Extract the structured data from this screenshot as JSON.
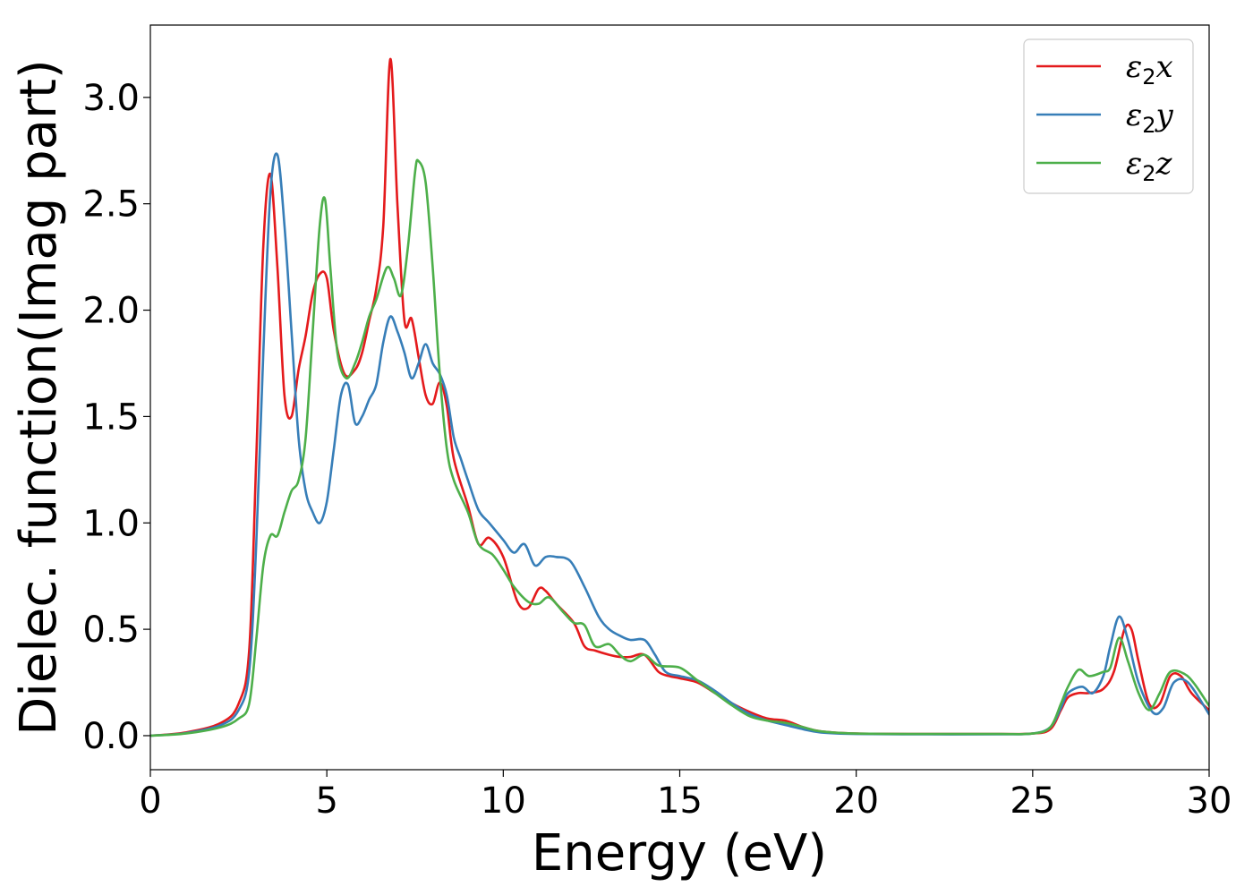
{
  "chart_data": {
    "type": "line",
    "title": "",
    "xlabel": "Energy (eV)",
    "ylabel": "Dielec. function(Imag part)",
    "xlim": [
      0,
      30
    ],
    "ylim": [
      -0.16,
      3.34
    ],
    "xticks": [
      0,
      5,
      10,
      15,
      20,
      25,
      30
    ],
    "xtick_labels": [
      "0",
      "5",
      "10",
      "15",
      "20",
      "25",
      "30"
    ],
    "yticks": [
      0.0,
      0.5,
      1.0,
      1.5,
      2.0,
      2.5,
      3.0
    ],
    "ytick_labels": [
      "0.0",
      "0.5",
      "1.0",
      "1.5",
      "2.0",
      "2.5",
      "3.0"
    ],
    "grid": false,
    "legend_position": "top-right",
    "series": [
      {
        "name": "ε2x",
        "legend_base": "ε",
        "legend_sub": "2",
        "legend_suffix": "x",
        "color": "#e41a1c",
        "x": [
          0,
          1,
          2,
          2.5,
          2.8,
          3.0,
          3.2,
          3.4,
          3.6,
          3.8,
          4.0,
          4.2,
          4.4,
          4.6,
          4.8,
          5.0,
          5.2,
          5.5,
          5.8,
          6.0,
          6.2,
          6.4,
          6.6,
          6.8,
          7.0,
          7.2,
          7.4,
          7.6,
          7.8,
          8.0,
          8.2,
          8.4,
          8.6,
          9.0,
          9.3,
          9.6,
          10.0,
          10.4,
          10.7,
          11.0,
          11.2,
          11.5,
          12.0,
          12.3,
          12.6,
          13.0,
          13.3,
          13.6,
          14.0,
          14.4,
          14.7,
          15.0,
          15.5,
          16.0,
          16.5,
          17.0,
          17.5,
          18.0,
          18.5,
          19.0,
          20.0,
          22.0,
          24.0,
          25.0,
          25.5,
          25.8,
          26.0,
          26.3,
          26.6,
          27.0,
          27.3,
          27.6,
          27.8,
          28.0,
          28.3,
          28.6,
          28.9,
          29.2,
          29.5,
          30.0
        ],
        "y": [
          0.0,
          0.015,
          0.06,
          0.15,
          0.4,
          1.3,
          2.3,
          2.64,
          2.2,
          1.6,
          1.5,
          1.72,
          1.88,
          2.08,
          2.17,
          2.15,
          1.9,
          1.7,
          1.72,
          1.8,
          1.95,
          2.1,
          2.4,
          3.18,
          2.5,
          1.95,
          1.96,
          1.78,
          1.6,
          1.56,
          1.66,
          1.55,
          1.3,
          1.08,
          0.9,
          0.93,
          0.84,
          0.63,
          0.6,
          0.69,
          0.68,
          0.62,
          0.53,
          0.42,
          0.4,
          0.38,
          0.37,
          0.37,
          0.38,
          0.3,
          0.28,
          0.27,
          0.25,
          0.2,
          0.15,
          0.11,
          0.08,
          0.07,
          0.04,
          0.02,
          0.01,
          0.008,
          0.008,
          0.01,
          0.03,
          0.12,
          0.18,
          0.2,
          0.2,
          0.22,
          0.3,
          0.5,
          0.5,
          0.35,
          0.15,
          0.15,
          0.28,
          0.28,
          0.2,
          0.12
        ]
      },
      {
        "name": "ε2y",
        "legend_base": "ε",
        "legend_sub": "2",
        "legend_suffix": "y",
        "color": "#377eb8",
        "x": [
          0,
          1,
          2,
          2.5,
          2.8,
          3.0,
          3.2,
          3.4,
          3.6,
          3.8,
          4.0,
          4.2,
          4.4,
          4.6,
          4.8,
          5.0,
          5.2,
          5.4,
          5.6,
          5.8,
          6.0,
          6.2,
          6.4,
          6.6,
          6.8,
          7.0,
          7.2,
          7.4,
          7.6,
          7.8,
          8.0,
          8.2,
          8.4,
          8.6,
          8.8,
          9.0,
          9.3,
          9.6,
          10.0,
          10.3,
          10.6,
          10.9,
          11.2,
          11.5,
          11.9,
          12.3,
          12.7,
          13.0,
          13.3,
          13.6,
          14.0,
          14.3,
          14.6,
          15.0,
          15.5,
          16.0,
          16.5,
          17.0,
          17.5,
          18.0,
          18.5,
          19.0,
          20.0,
          22.0,
          24.0,
          25.0,
          25.5,
          25.8,
          26.0,
          26.4,
          26.7,
          27.0,
          27.2,
          27.45,
          27.7,
          28.0,
          28.4,
          28.7,
          29.0,
          29.4,
          30.0
        ],
        "y": [
          0.0,
          0.012,
          0.05,
          0.12,
          0.3,
          0.9,
          1.8,
          2.55,
          2.73,
          2.4,
          1.9,
          1.4,
          1.15,
          1.05,
          1.0,
          1.1,
          1.35,
          1.6,
          1.65,
          1.47,
          1.5,
          1.58,
          1.65,
          1.85,
          1.97,
          1.9,
          1.8,
          1.68,
          1.75,
          1.84,
          1.75,
          1.7,
          1.6,
          1.4,
          1.3,
          1.2,
          1.06,
          1.0,
          0.92,
          0.86,
          0.9,
          0.8,
          0.84,
          0.84,
          0.82,
          0.7,
          0.56,
          0.5,
          0.47,
          0.45,
          0.45,
          0.38,
          0.3,
          0.28,
          0.26,
          0.21,
          0.15,
          0.1,
          0.07,
          0.05,
          0.03,
          0.015,
          0.008,
          0.006,
          0.006,
          0.01,
          0.04,
          0.13,
          0.2,
          0.23,
          0.2,
          0.28,
          0.42,
          0.56,
          0.45,
          0.25,
          0.11,
          0.13,
          0.25,
          0.25,
          0.1
        ]
      },
      {
        "name": "ε2z",
        "legend_base": "ε",
        "legend_sub": "2",
        "legend_suffix": "z",
        "color": "#4daf4a",
        "x": [
          0,
          1,
          2,
          2.5,
          2.8,
          3.0,
          3.2,
          3.4,
          3.6,
          3.8,
          4.0,
          4.2,
          4.4,
          4.6,
          4.8,
          4.95,
          5.1,
          5.3,
          5.55,
          5.8,
          6.0,
          6.2,
          6.4,
          6.7,
          6.9,
          7.1,
          7.3,
          7.5,
          7.6,
          7.8,
          8.0,
          8.2,
          8.4,
          8.6,
          9.0,
          9.3,
          9.7,
          10.0,
          10.3,
          10.7,
          11.0,
          11.3,
          11.7,
          12.0,
          12.3,
          12.6,
          13.0,
          13.3,
          13.6,
          14.0,
          14.4,
          15.0,
          15.5,
          16.0,
          16.5,
          17.0,
          17.5,
          18.0,
          18.5,
          19.0,
          20.0,
          22.0,
          24.0,
          25.0,
          25.5,
          25.8,
          26.0,
          26.3,
          26.6,
          27.0,
          27.2,
          27.45,
          27.7,
          28.0,
          28.3,
          28.6,
          28.9,
          29.3,
          29.6,
          30.0
        ],
        "y": [
          0.0,
          0.01,
          0.04,
          0.08,
          0.15,
          0.45,
          0.8,
          0.94,
          0.94,
          1.05,
          1.15,
          1.2,
          1.4,
          1.9,
          2.4,
          2.52,
          2.2,
          1.8,
          1.68,
          1.75,
          1.85,
          1.97,
          2.05,
          2.2,
          2.15,
          2.07,
          2.3,
          2.65,
          2.7,
          2.6,
          2.2,
          1.7,
          1.35,
          1.2,
          1.05,
          0.9,
          0.85,
          0.78,
          0.7,
          0.63,
          0.62,
          0.65,
          0.58,
          0.53,
          0.52,
          0.42,
          0.43,
          0.38,
          0.35,
          0.38,
          0.33,
          0.32,
          0.26,
          0.2,
          0.14,
          0.09,
          0.07,
          0.06,
          0.04,
          0.02,
          0.01,
          0.008,
          0.008,
          0.01,
          0.04,
          0.15,
          0.23,
          0.31,
          0.28,
          0.3,
          0.32,
          0.46,
          0.35,
          0.2,
          0.12,
          0.2,
          0.3,
          0.29,
          0.24,
          0.14
        ]
      }
    ]
  }
}
